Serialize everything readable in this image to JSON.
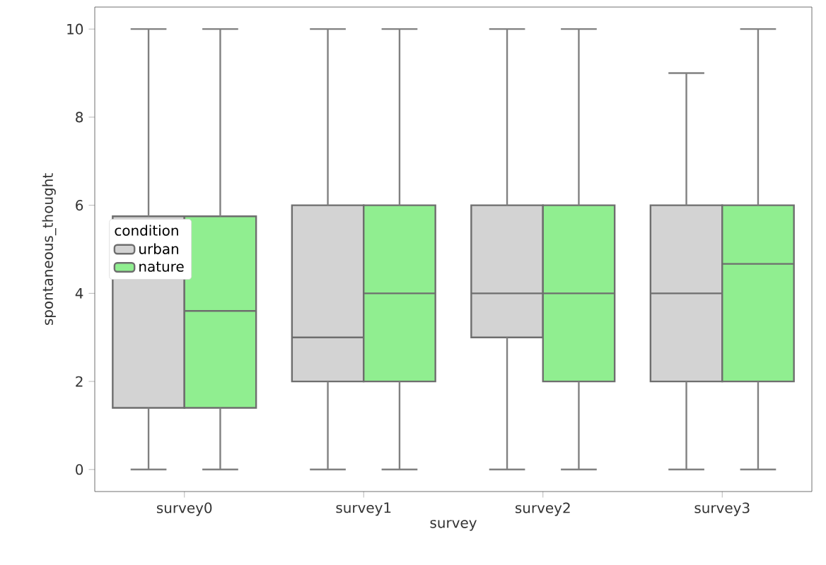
{
  "chart_data": {
    "type": "box",
    "xlabel": "survey",
    "ylabel": "spontaneous_thought",
    "legend_title": "condition",
    "legend": "left",
    "categories": [
      "survey0",
      "survey1",
      "survey2",
      "survey3"
    ],
    "ylim": [
      -0.5,
      10.5
    ],
    "yticks": [
      0,
      2,
      4,
      6,
      8,
      10
    ],
    "grid": false,
    "series": [
      {
        "name": "urban",
        "color": "#d3d3d3",
        "boxes": [
          {
            "low": 0,
            "q1": 1.4,
            "median": null,
            "q3": 5.75,
            "high": 10
          },
          {
            "low": 0,
            "q1": 2,
            "median": 3,
            "q3": 6,
            "high": 10
          },
          {
            "low": 0,
            "q1": 3,
            "median": 4,
            "q3": 6,
            "high": 10
          },
          {
            "low": 0,
            "q1": 2,
            "median": 4,
            "q3": 6,
            "high": 9
          }
        ]
      },
      {
        "name": "nature",
        "color": "#90ee90",
        "boxes": [
          {
            "low": 0,
            "q1": 1.4,
            "median": 3.6,
            "q3": 5.75,
            "high": 10
          },
          {
            "low": 0,
            "q1": 2,
            "median": 4,
            "q3": 6,
            "high": 10
          },
          {
            "low": 0,
            "q1": 2,
            "median": 4,
            "q3": 6,
            "high": 10
          },
          {
            "low": 0,
            "q1": 2,
            "median": 4.67,
            "q3": 6,
            "high": 10
          }
        ]
      }
    ]
  }
}
